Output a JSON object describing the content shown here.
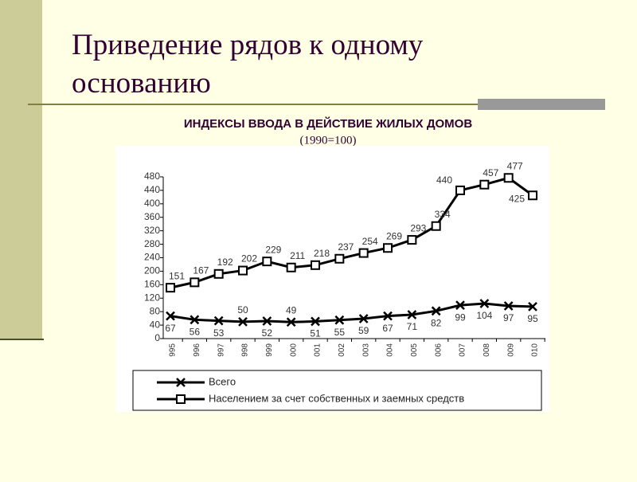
{
  "slide_title": "Приведение рядов к одному основанию",
  "chart_data": {
    "type": "line",
    "title": "ИНДЕКСЫ ВВОДА В ДЕЙСТВИЕ ЖИЛЫХ ДОМОВ",
    "subtitle": "(1990=100)",
    "categories": [
      "995",
      "996",
      "997",
      "998",
      "999",
      "000",
      "001",
      "002",
      "003",
      "004",
      "005",
      "006",
      "007",
      "008",
      "009",
      "010"
    ],
    "series": [
      {
        "name": "Всего",
        "color": "#000000",
        "marker": "x",
        "values": [
          67,
          56,
          53,
          50,
          52,
          49,
          51,
          55,
          59,
          67,
          71,
          82,
          99,
          104,
          97,
          95
        ]
      },
      {
        "name": "Населением за счет собственных и заемных средств",
        "color": "#000000",
        "marker": "square",
        "values": [
          151,
          167,
          192,
          202,
          229,
          211,
          218,
          237,
          254,
          269,
          293,
          334,
          440,
          457,
          477,
          425
        ]
      }
    ],
    "ylim": [
      0,
      480
    ],
    "yticks": [
      0,
      40,
      80,
      120,
      160,
      200,
      240,
      280,
      320,
      360,
      400,
      440,
      480
    ],
    "grid": false
  }
}
